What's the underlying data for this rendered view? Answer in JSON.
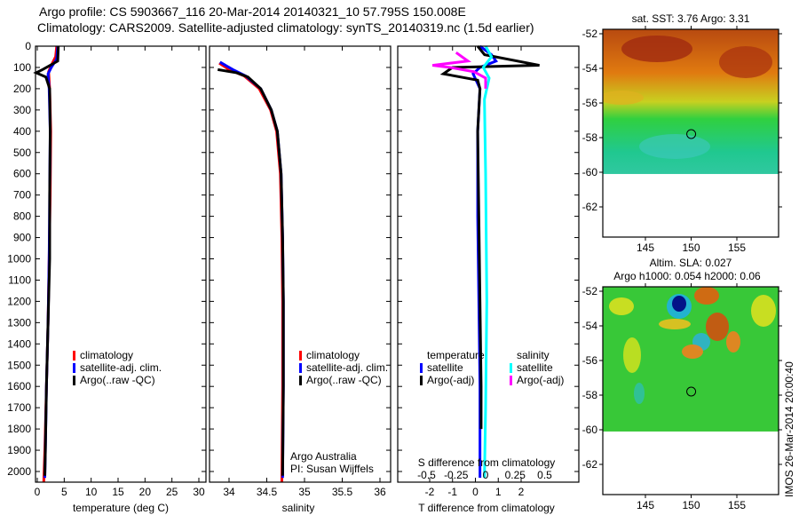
{
  "title_line1": "Argo profile: CS 5903667_116 20-Mar-2014 20140321_10 57.795S 150.008E",
  "title_line2": "Climatology: CARS2009. Satellite-adjusted climatology: synTS_20140319.nc (1.5d earlier)",
  "colors": {
    "climatology": "#ff0000",
    "satellite": "#0000ff",
    "argo": "#000000",
    "sal_satellite": "#00ffff",
    "sal_argo": "#ff00ff"
  },
  "chart_data": [
    {
      "type": "line",
      "id": "temperature",
      "xlabel": "temperature (deg C)",
      "ylabel": "depth",
      "xticks": [
        0,
        5,
        10,
        15,
        20,
        25,
        30
      ],
      "yticks": [
        0,
        100,
        200,
        300,
        400,
        500,
        600,
        700,
        800,
        900,
        1000,
        1100,
        1200,
        1300,
        1400,
        1500,
        1600,
        1700,
        1800,
        1900,
        2000
      ],
      "xlim": [
        -0.5,
        31.5
      ],
      "ylim": [
        2050,
        0
      ],
      "legend": [
        "climatology",
        "satellite-adj. clim.",
        "Argo(..raw -QC)"
      ],
      "series": [
        {
          "name": "climatology",
          "color": "#ff0000",
          "points": [
            [
              3.6,
              0
            ],
            [
              3.4,
              50
            ],
            [
              2.6,
              90
            ],
            [
              2.1,
              120
            ],
            [
              2.3,
              200
            ],
            [
              2.5,
              400
            ],
            [
              2.4,
              700
            ],
            [
              2.2,
              1000
            ],
            [
              2.0,
              1300
            ],
            [
              1.7,
              1600
            ],
            [
              1.4,
              1900
            ],
            [
              1.2,
              2050
            ]
          ]
        },
        {
          "name": "satellite-adj. clim.",
          "color": "#0000ff",
          "points": [
            [
              3.8,
              0
            ],
            [
              3.6,
              60
            ],
            [
              2.6,
              100
            ],
            [
              2.0,
              130
            ],
            [
              2.2,
              200
            ],
            [
              2.4,
              400
            ],
            [
              2.3,
              700
            ],
            [
              2.2,
              1000
            ],
            [
              2.0,
              1300
            ],
            [
              1.7,
              1600
            ],
            [
              1.5,
              1900
            ],
            [
              1.4,
              2030
            ]
          ]
        },
        {
          "name": "Argo(..raw -QC)",
          "color": "#000000",
          "points": [
            [
              3.9,
              0
            ],
            [
              3.8,
              70
            ],
            [
              1.0,
              110
            ],
            [
              -0.2,
              125
            ],
            [
              1.6,
              145
            ],
            [
              2.3,
              200
            ],
            [
              2.4,
              400
            ],
            [
              2.3,
              700
            ],
            [
              2.3,
              1000
            ],
            [
              2.0,
              1300
            ],
            [
              1.7,
              1600
            ],
            [
              1.5,
              1900
            ],
            [
              1.4,
              2020
            ]
          ]
        }
      ]
    },
    {
      "type": "line",
      "id": "salinity",
      "xlabel": "salinity",
      "xticks": [
        34,
        34.5,
        35,
        35.5,
        36
      ],
      "xlim": [
        33.75,
        36.25
      ],
      "ylim": [
        2050,
        0
      ],
      "legend": [
        "climatology",
        "satellite-adj. clim.",
        "Argo(..raw -QC)"
      ],
      "annotation": [
        "Argo Australia",
        "PI: Susan Wijffels"
      ],
      "series": [
        {
          "name": "climatology",
          "color": "#ff0000",
          "points": [
            [
              33.87,
              80
            ],
            [
              34.0,
              110
            ],
            [
              34.2,
              140
            ],
            [
              34.4,
              200
            ],
            [
              34.55,
              300
            ],
            [
              34.63,
              400
            ],
            [
              34.68,
              600
            ],
            [
              34.7,
              900
            ],
            [
              34.71,
              1200
            ],
            [
              34.71,
              1600
            ],
            [
              34.7,
              2050
            ]
          ]
        },
        {
          "name": "satellite-adj. clim.",
          "color": "#0000ff",
          "points": [
            [
              33.88,
              75
            ],
            [
              34.05,
              110
            ],
            [
              34.22,
              140
            ],
            [
              34.42,
              200
            ],
            [
              34.56,
              300
            ],
            [
              34.64,
              400
            ],
            [
              34.69,
              600
            ],
            [
              34.71,
              900
            ],
            [
              34.72,
              1200
            ],
            [
              34.72,
              1600
            ],
            [
              34.71,
              2030
            ]
          ]
        },
        {
          "name": "Argo(..raw -QC)",
          "color": "#000000",
          "points": [
            [
              33.85,
              110
            ],
            [
              34.1,
              125
            ],
            [
              34.25,
              145
            ],
            [
              34.42,
              200
            ],
            [
              34.56,
              300
            ],
            [
              34.64,
              400
            ],
            [
              34.69,
              600
            ],
            [
              34.71,
              900
            ],
            [
              34.72,
              1200
            ],
            [
              34.72,
              1600
            ],
            [
              34.71,
              2020
            ]
          ]
        }
      ]
    },
    {
      "type": "line",
      "id": "difference",
      "xlabel": "T difference from climatology",
      "xlabel_top": "S difference from climatology",
      "xticks": [
        -2,
        -1,
        0,
        1,
        2
      ],
      "xticks_top": [
        -0.5,
        -0.25,
        0,
        0.25,
        0.5
      ],
      "xlim": [
        -3.5,
        4.5
      ],
      "xlim_top": [
        -0.5,
        0.5
      ],
      "ylim": [
        2050,
        0
      ],
      "legend_temperature": {
        "title": "temperature",
        "items": [
          "satellite",
          "Argo(-adj)"
        ]
      },
      "legend_salinity": {
        "title": "salinity",
        "items": [
          "satellite",
          "Argo(-adj)"
        ]
      },
      "series": [
        {
          "name": "temperature satellite",
          "axis": "T",
          "color": "#0000ff",
          "points": [
            [
              0.2,
              0
            ],
            [
              0.7,
              40
            ],
            [
              0.9,
              70
            ],
            [
              0.2,
              100
            ],
            [
              -0.1,
              130
            ],
            [
              0.2,
              200
            ],
            [
              0.1,
              400
            ],
            [
              0.1,
              800
            ],
            [
              0.15,
              1200
            ],
            [
              0.2,
              1600
            ],
            [
              0.2,
              2030
            ]
          ]
        },
        {
          "name": "temperature Argo(-adj)",
          "color": "#000000",
          "axis": "T",
          "points": [
            [
              0.1,
              0
            ],
            [
              0.4,
              40
            ],
            [
              2.8,
              90
            ],
            [
              -1.0,
              100
            ],
            [
              -1.4,
              130
            ],
            [
              0.1,
              160
            ],
            [
              0.2,
              200
            ],
            [
              0.1,
              400
            ],
            [
              0.15,
              800
            ],
            [
              0.2,
              1200
            ],
            [
              0.25,
              1600
            ],
            [
              0.25,
              1800
            ]
          ]
        },
        {
          "name": "salinity satellite",
          "color": "#00ffff",
          "axis": "S",
          "points": [
            [
              0.0,
              0
            ],
            [
              0.05,
              50
            ],
            [
              -0.02,
              100
            ],
            [
              0.03,
              150
            ],
            [
              -0.01,
              250
            ],
            [
              0.0,
              600
            ],
            [
              0.01,
              1200
            ],
            [
              0.0,
              1700
            ],
            [
              -0.01,
              2030
            ]
          ]
        },
        {
          "name": "salinity Argo(-adj)",
          "color": "#ff00ff",
          "axis": "S",
          "points": [
            [
              -0.25,
              30
            ],
            [
              -0.15,
              70
            ],
            [
              -0.45,
              90
            ],
            [
              -0.3,
              100
            ],
            [
              -0.1,
              120
            ],
            [
              0.0,
              150
            ],
            [
              0.0,
              200
            ]
          ]
        }
      ]
    },
    {
      "type": "heatmap",
      "id": "sst-map",
      "title": "sat. SST: 3.76 Argo: 3.31",
      "xticks": [
        145,
        150,
        155
      ],
      "yticks": [
        -52,
        -54,
        -56,
        -58,
        -60,
        -62
      ],
      "xlim": [
        140.5,
        159.7
      ],
      "ylim": [
        -64,
        -52
      ],
      "marker": {
        "lon": 150.008,
        "lat": -57.795
      }
    },
    {
      "type": "heatmap",
      "id": "sla-map",
      "title": "Altim. SLA: 0.027",
      "subtitle": "Argo h1000: 0.054 h2000: 0.06",
      "xticks": [
        145,
        150,
        155
      ],
      "yticks": [
        -52,
        -54,
        -56,
        -58,
        -60,
        -62
      ],
      "xlim": [
        140.5,
        159.7
      ],
      "ylim": [
        -64,
        -52
      ],
      "marker": {
        "lon": 150.008,
        "lat": -57.795
      },
      "side_label": "IMOS 26-Mar-2014 20:00:40"
    }
  ]
}
